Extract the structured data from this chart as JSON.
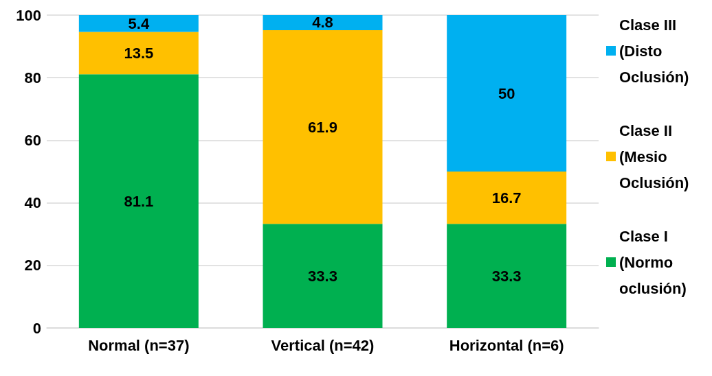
{
  "chart_data": {
    "type": "bar",
    "stacked": true,
    "categories": [
      "Normal (n=37)",
      "Vertical (n=42)",
      "Horizontal (n=6)"
    ],
    "series": [
      {
        "name": "Clase I (Normo oclusión)",
        "color": "#00b050",
        "values": [
          81.1,
          33.3,
          33.3
        ]
      },
      {
        "name": "Clase II (Mesio Oclusión)",
        "color": "#ffc000",
        "values": [
          13.5,
          61.9,
          16.7
        ]
      },
      {
        "name": "Clase III (Disto Oclusión)",
        "color": "#00b0f0",
        "values": [
          5.4,
          4.8,
          50
        ]
      }
    ],
    "ylim": [
      0,
      100
    ],
    "yticks": [
      0,
      20,
      40,
      60,
      80,
      100
    ],
    "grid": "y",
    "legend": "right",
    "data_labels": true
  }
}
